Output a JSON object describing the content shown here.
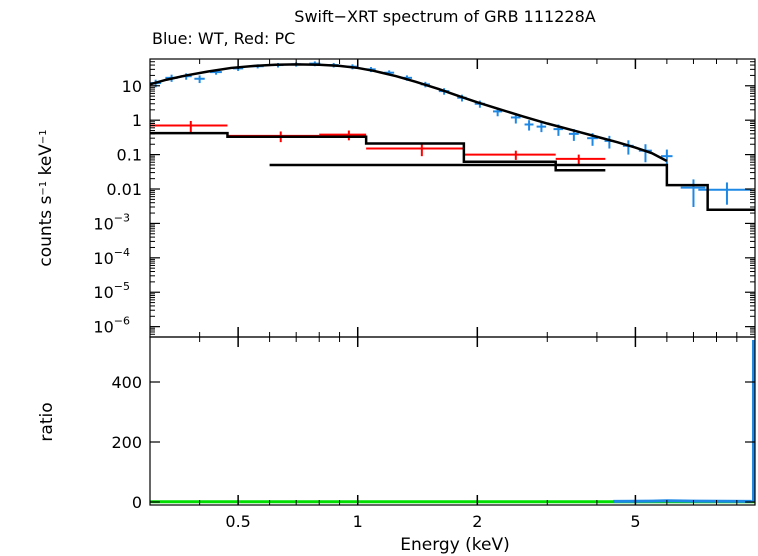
{
  "chart_data": {
    "type": "line",
    "title": "Swift−XRT spectrum of GRB 111228A",
    "subtitle": "Blue: WT, Red: PC",
    "xlabel": "Energy (keV)",
    "x_scale": "log",
    "xlim": [
      0.3,
      10
    ],
    "x_ticks": [
      {
        "value": 0.5,
        "label": "0.5"
      },
      {
        "value": 1,
        "label": "1"
      },
      {
        "value": 2,
        "label": "2"
      },
      {
        "value": 5,
        "label": "5"
      }
    ],
    "colors": {
      "wt": "#1e88e5",
      "pc": "#ff0000",
      "model": "#000000",
      "ratio_ref": "#00dd00",
      "frame": "#000000"
    },
    "panels": [
      {
        "name": "spectrum",
        "ylabel": {
          "base": "counts s",
          "sup1": "−1",
          "mid": " keV",
          "sup2": "−1"
        },
        "y_scale": "log",
        "ylim": [
          5e-07,
          60
        ],
        "y_ticks": [
          {
            "value": 10,
            "label": "10"
          },
          {
            "value": 1,
            "label": "1"
          },
          {
            "value": 0.1,
            "label": "0.1"
          },
          {
            "value": 0.01,
            "label": "0.01"
          },
          {
            "value": 0.001,
            "base": "10",
            "exp": "−3"
          },
          {
            "value": 0.0001,
            "base": "10",
            "exp": "−4"
          },
          {
            "value": 1e-05,
            "base": "10",
            "exp": "−5"
          },
          {
            "value": 1e-06,
            "base": "10",
            "exp": "−6"
          }
        ],
        "series": [
          {
            "key": "wt",
            "style": "errorbars",
            "points": [
              {
                "x": 0.31,
                "y": 12,
                "xerr": 0.01,
                "yerr": 3
              },
              {
                "x": 0.34,
                "y": 17,
                "xerr": 0.012,
                "yerr": 4
              },
              {
                "x": 0.37,
                "y": 19,
                "xerr": 0.012,
                "yerr": 4
              },
              {
                "x": 0.4,
                "y": 16,
                "xerr": 0.012,
                "yerr": 4
              },
              {
                "x": 0.44,
                "y": 25,
                "xerr": 0.015,
                "yerr": 4
              },
              {
                "x": 0.5,
                "y": 32,
                "xerr": 0.015,
                "yerr": 5
              },
              {
                "x": 0.56,
                "y": 37,
                "xerr": 0.02,
                "yerr": 5
              },
              {
                "x": 0.63,
                "y": 40,
                "xerr": 0.02,
                "yerr": 6
              },
              {
                "x": 0.7,
                "y": 42,
                "xerr": 0.02,
                "yerr": 6
              },
              {
                "x": 0.78,
                "y": 44,
                "xerr": 0.025,
                "yerr": 7
              },
              {
                "x": 0.87,
                "y": 40,
                "xerr": 0.025,
                "yerr": 6
              },
              {
                "x": 0.97,
                "y": 36,
                "xerr": 0.03,
                "yerr": 6
              },
              {
                "x": 1.08,
                "y": 30,
                "xerr": 0.03,
                "yerr": 5
              },
              {
                "x": 1.2,
                "y": 24,
                "xerr": 0.035,
                "yerr": 4
              },
              {
                "x": 1.33,
                "y": 17,
                "xerr": 0.04,
                "yerr": 3
              },
              {
                "x": 1.48,
                "y": 11,
                "xerr": 0.04,
                "yerr": 2
              },
              {
                "x": 1.65,
                "y": 7,
                "xerr": 0.05,
                "yerr": 1.5
              },
              {
                "x": 1.83,
                "y": 4.5,
                "xerr": 0.05,
                "yerr": 1
              },
              {
                "x": 2.03,
                "y": 3,
                "xerr": 0.06,
                "yerr": 0.7
              },
              {
                "x": 2.25,
                "y": 1.8,
                "xerr": 0.06,
                "yerr": 0.5
              },
              {
                "x": 2.5,
                "y": 1.2,
                "xerr": 0.07,
                "yerr": 0.4
              },
              {
                "x": 2.7,
                "y": 0.75,
                "xerr": 0.07,
                "yerr": 0.25
              },
              {
                "x": 2.9,
                "y": 0.65,
                "xerr": 0.08,
                "yerr": 0.2
              },
              {
                "x": 3.2,
                "y": 0.55,
                "xerr": 0.09,
                "yerr": 0.2
              },
              {
                "x": 3.5,
                "y": 0.4,
                "xerr": 0.1,
                "yerr": 0.15
              },
              {
                "x": 3.9,
                "y": 0.3,
                "xerr": 0.12,
                "yerr": 0.12
              },
              {
                "x": 4.3,
                "y": 0.25,
                "xerr": 0.12,
                "yerr": 0.1
              },
              {
                "x": 4.8,
                "y": 0.18,
                "xerr": 0.15,
                "yerr": 0.08
              },
              {
                "x": 5.3,
                "y": 0.13,
                "xerr": 0.2,
                "yerr": 0.07
              },
              {
                "x": 6.0,
                "y": 0.09,
                "xerr": 0.2,
                "yerr": 0.05
              },
              {
                "x": 7.0,
                "y": 0.011,
                "xerr": 0.5,
                "yerr": 0.008
              },
              {
                "x": 8.5,
                "y": 0.0095,
                "xerr": 1.3,
                "yerr": 0.006
              }
            ]
          },
          {
            "key": "pc",
            "style": "errorbars",
            "points": [
              {
                "x": 0.38,
                "y": 0.7,
                "xerr_lo": 0.08,
                "xerr_hi": 0.09,
                "yerr": 0.25
              },
              {
                "x": 0.64,
                "y": 0.35,
                "xerr_lo": 0.17,
                "xerr_hi": 0.16,
                "yerr": 0.12
              },
              {
                "x": 0.95,
                "y": 0.38,
                "xerr_lo": 0.15,
                "xerr_hi": 0.1,
                "yerr": 0.12
              },
              {
                "x": 1.45,
                "y": 0.15,
                "xerr_lo": 0.4,
                "xerr_hi": 0.4,
                "yerr": 0.06
              },
              {
                "x": 2.5,
                "y": 0.1,
                "xerr_lo": 0.65,
                "xerr_hi": 0.65,
                "yerr": 0.03
              },
              {
                "x": 3.6,
                "y": 0.075,
                "xerr_lo": 0.45,
                "xerr_hi": 0.6,
                "yerr": 0.025
              }
            ]
          },
          {
            "key": "model",
            "style": "line",
            "points": [
              {
                "x": 0.3,
                "y": 11
              },
              {
                "x": 0.33,
                "y": 15
              },
              {
                "x": 0.37,
                "y": 20
              },
              {
                "x": 0.42,
                "y": 26
              },
              {
                "x": 0.48,
                "y": 33
              },
              {
                "x": 0.55,
                "y": 38
              },
              {
                "x": 0.62,
                "y": 41
              },
              {
                "x": 0.7,
                "y": 42
              },
              {
                "x": 0.8,
                "y": 41
              },
              {
                "x": 0.9,
                "y": 38
              },
              {
                "x": 1.0,
                "y": 33
              },
              {
                "x": 1.1,
                "y": 27
              },
              {
                "x": 1.25,
                "y": 19
              },
              {
                "x": 1.4,
                "y": 13
              },
              {
                "x": 1.6,
                "y": 8
              },
              {
                "x": 1.8,
                "y": 5
              },
              {
                "x": 2.0,
                "y": 3.3
              },
              {
                "x": 2.3,
                "y": 2
              },
              {
                "x": 2.6,
                "y": 1.3
              },
              {
                "x": 3.0,
                "y": 0.8
              },
              {
                "x": 3.5,
                "y": 0.5
              },
              {
                "x": 4.0,
                "y": 0.33
              },
              {
                "x": 4.5,
                "y": 0.23
              },
              {
                "x": 5.0,
                "y": 0.16
              },
              {
                "x": 5.5,
                "y": 0.11
              },
              {
                "x": 6.0,
                "y": 0.065
              }
            ]
          },
          {
            "key": "model",
            "style": "step",
            "points": [
              {
                "x": 0.6,
                "y": 0.05
              },
              {
                "x": 6.0,
                "y": 0.05
              },
              {
                "x": 6.0,
                "y": 0.013
              },
              {
                "x": 7.6,
                "y": 0.013
              },
              {
                "x": 7.6,
                "y": 0.0025
              },
              {
                "x": 10,
                "y": 0.0025
              }
            ]
          },
          {
            "key": "model",
            "style": "step",
            "points": [
              {
                "x": 0.3,
                "y": 0.42
              },
              {
                "x": 0.47,
                "y": 0.42
              },
              {
                "x": 0.47,
                "y": 0.33
              },
              {
                "x": 1.05,
                "y": 0.33
              },
              {
                "x": 1.05,
                "y": 0.21
              },
              {
                "x": 1.85,
                "y": 0.21
              },
              {
                "x": 1.85,
                "y": 0.062
              },
              {
                "x": 3.15,
                "y": 0.062
              },
              {
                "x": 3.15,
                "y": 0.035
              },
              {
                "x": 4.2,
                "y": 0.035
              }
            ]
          }
        ]
      },
      {
        "name": "ratio",
        "ylabel": "ratio",
        "y_scale": "linear",
        "ylim": [
          -10,
          550
        ],
        "y_ticks": [
          {
            "value": 0,
            "label": "0"
          },
          {
            "value": 200,
            "label": "200"
          },
          {
            "value": 400,
            "label": "400"
          }
        ],
        "series": [
          {
            "key": "ratio_ref",
            "style": "line",
            "points": [
              {
                "x": 0.3,
                "y": 1
              },
              {
                "x": 10,
                "y": 1
              }
            ]
          },
          {
            "key": "wt",
            "style": "line",
            "points": [
              {
                "x": 4.4,
                "y": 2
              },
              {
                "x": 5.5,
                "y": 3
              },
              {
                "x": 6.0,
                "y": 4
              },
              {
                "x": 7.0,
                "y": 3
              },
              {
                "x": 9.8,
                "y": 2
              }
            ]
          },
          {
            "key": "wt",
            "style": "vline",
            "points": [
              {
                "x": 9.9,
                "y": 0
              },
              {
                "x": 9.9,
                "y": 540
              }
            ]
          }
        ]
      }
    ]
  }
}
